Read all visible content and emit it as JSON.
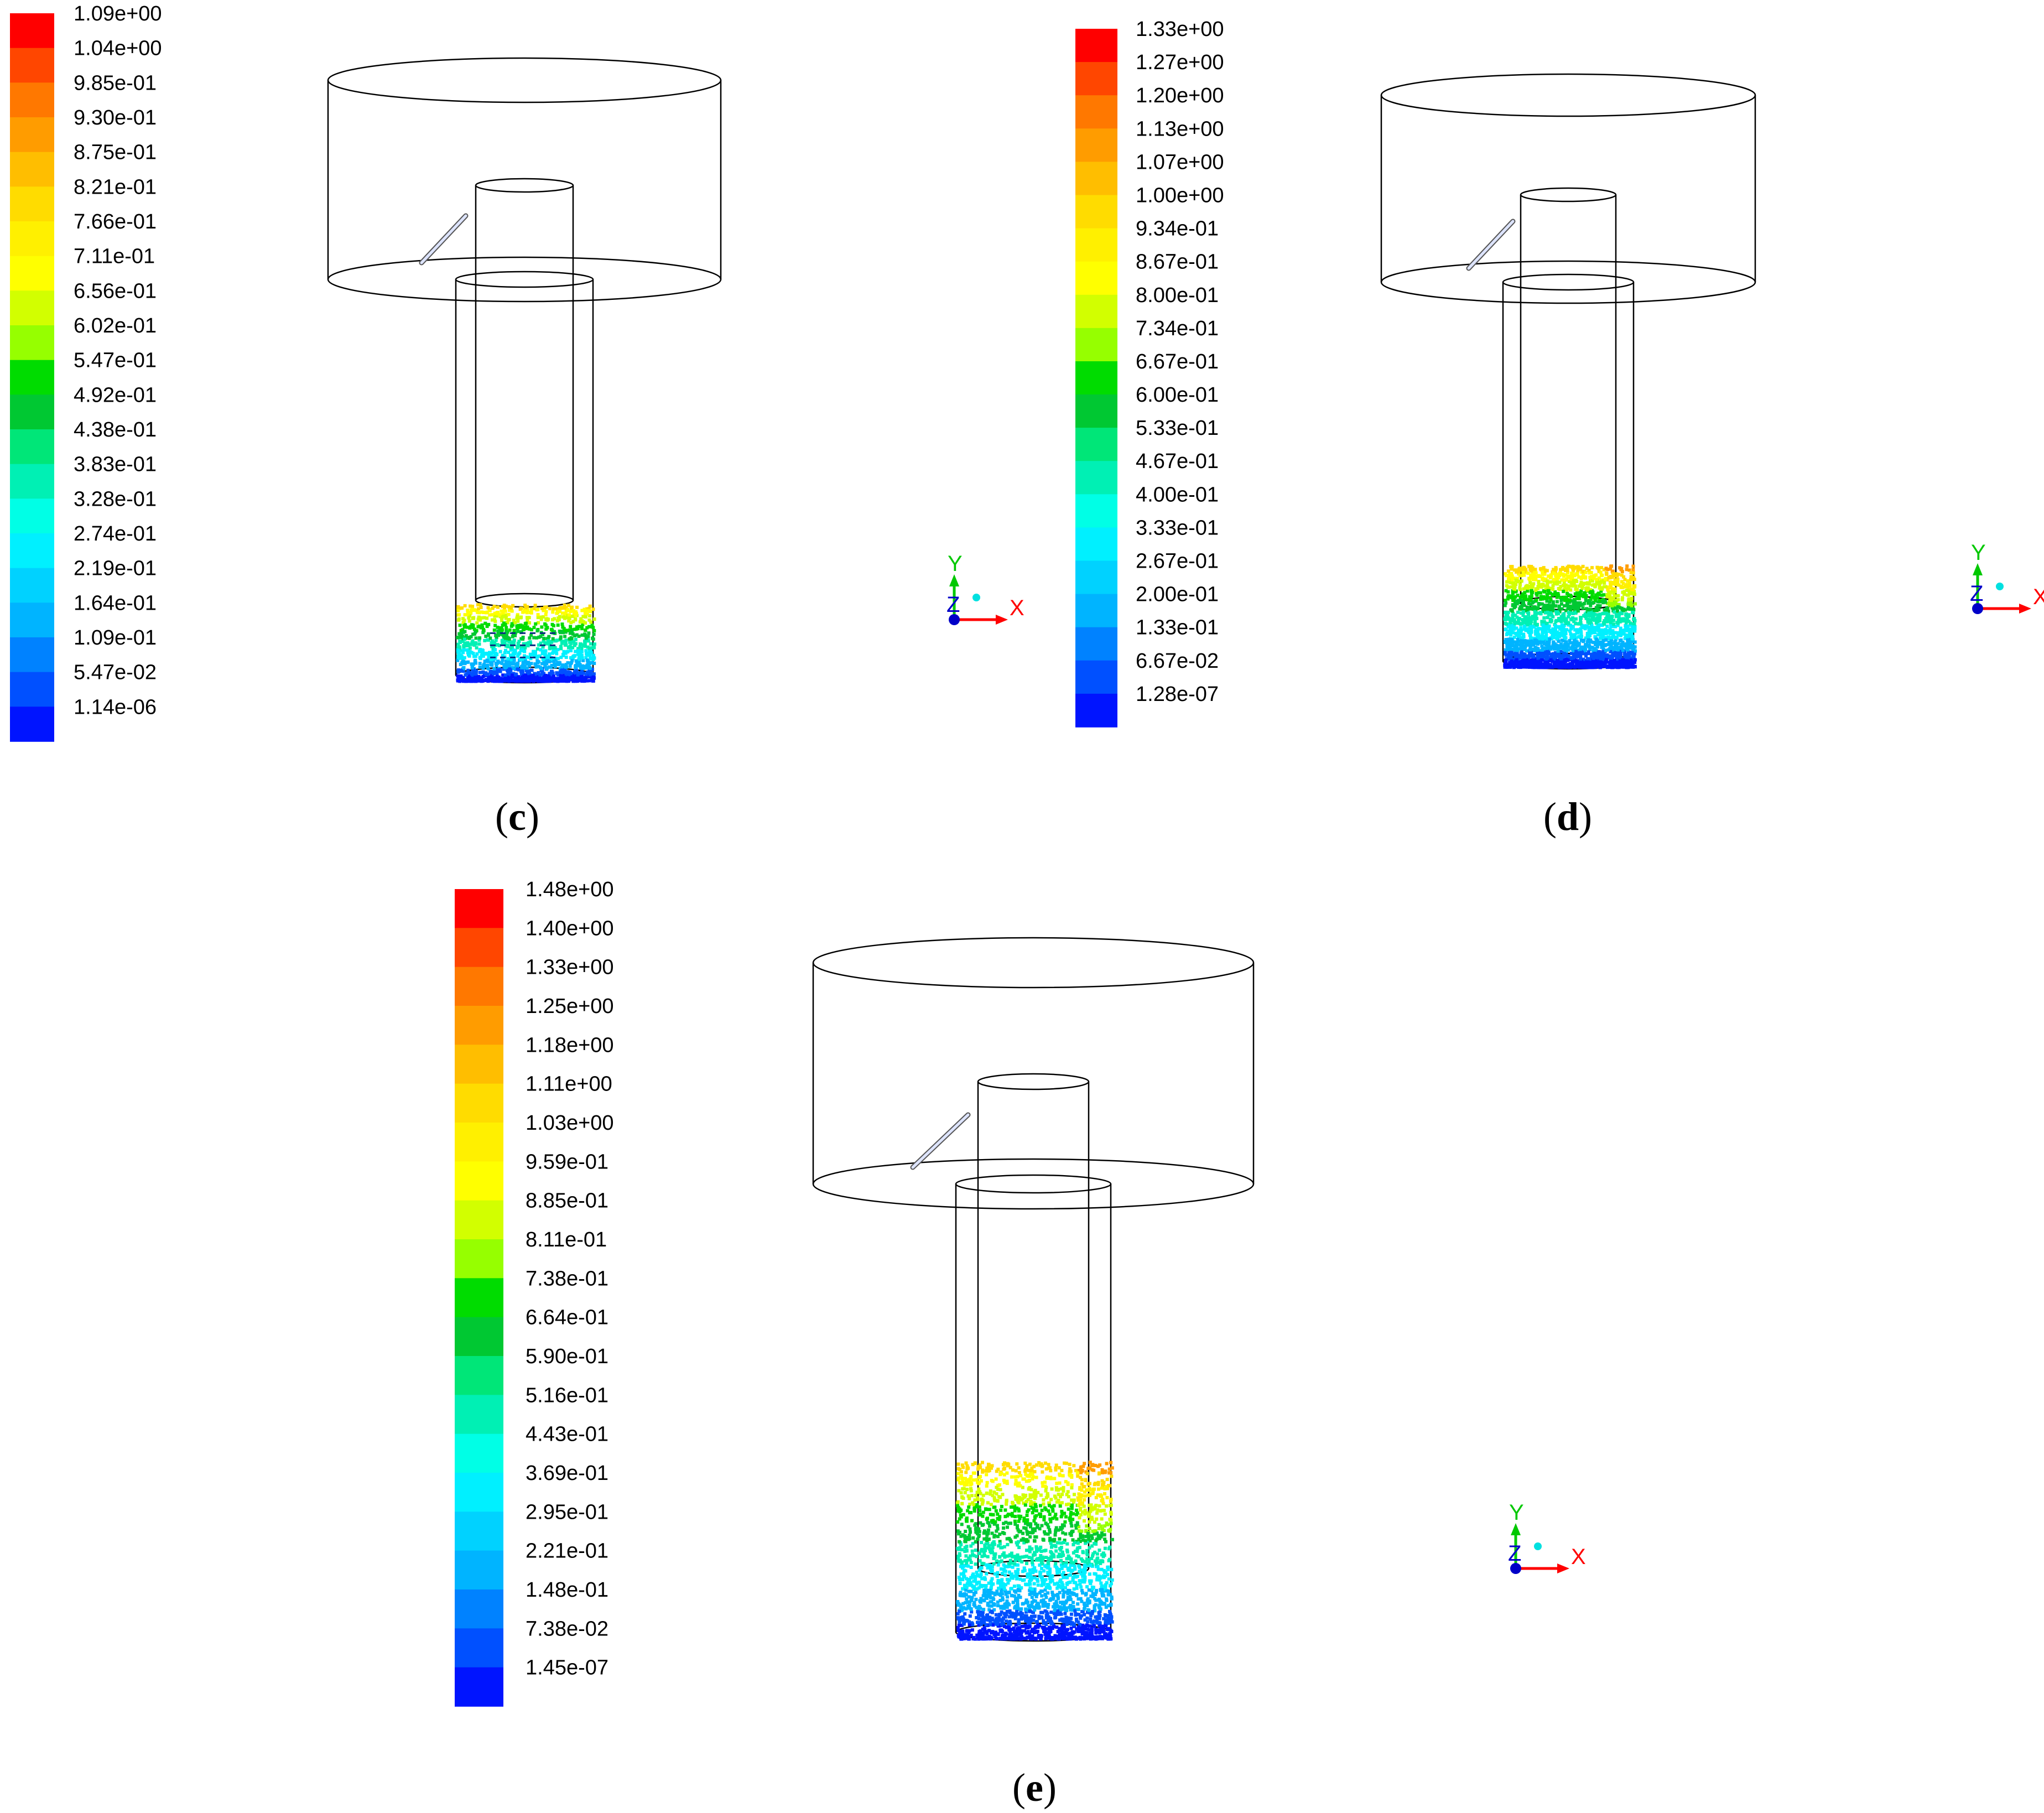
{
  "panels": [
    {
      "id": "c",
      "caption_open": "(",
      "caption_letter": "c",
      "caption_close": ")",
      "legend_values": [
        "1.09e+00",
        "1.04e+00",
        "9.85e-01",
        "9.30e-01",
        "8.75e-01",
        "8.21e-01",
        "7.66e-01",
        "7.11e-01",
        "6.56e-01",
        "6.02e-01",
        "5.47e-01",
        "4.92e-01",
        "4.38e-01",
        "3.83e-01",
        "3.28e-01",
        "2.74e-01",
        "2.19e-01",
        "1.64e-01",
        "1.09e-01",
        "5.47e-02",
        "1.14e-06"
      ]
    },
    {
      "id": "d",
      "caption_open": "(",
      "caption_letter": "d",
      "caption_close": ")",
      "legend_values": [
        "1.33e+00",
        "1.27e+00",
        "1.20e+00",
        "1.13e+00",
        "1.07e+00",
        "1.00e+00",
        "9.34e-01",
        "8.67e-01",
        "8.00e-01",
        "7.34e-01",
        "6.67e-01",
        "6.00e-01",
        "5.33e-01",
        "4.67e-01",
        "4.00e-01",
        "3.33e-01",
        "2.67e-01",
        "2.00e-01",
        "1.33e-01",
        "6.67e-02",
        "1.28e-07"
      ]
    },
    {
      "id": "e",
      "caption_open": "(",
      "caption_letter": "e",
      "caption_close": ")",
      "legend_values": [
        "1.48e+00",
        "1.40e+00",
        "1.33e+00",
        "1.25e+00",
        "1.18e+00",
        "1.11e+00",
        "1.03e+00",
        "9.59e-01",
        "8.85e-01",
        "8.11e-01",
        "7.38e-01",
        "6.64e-01",
        "5.90e-01",
        "5.16e-01",
        "4.43e-01",
        "3.69e-01",
        "2.95e-01",
        "2.21e-01",
        "1.48e-01",
        "7.38e-02",
        "1.45e-07"
      ]
    }
  ],
  "colormap": [
    "#ff0000",
    "#ff4600",
    "#ff7800",
    "#ff9c00",
    "#ffbe00",
    "#ffdc00",
    "#fff000",
    "#ffff00",
    "#d2ff00",
    "#96ff00",
    "#00dc00",
    "#00c832",
    "#00e678",
    "#00f0b4",
    "#00ffe6",
    "#00f0ff",
    "#00d2ff",
    "#00b4ff",
    "#0082ff",
    "#0050ff",
    "#0014ff"
  ],
  "axes": {
    "x": "X",
    "y": "Y",
    "z": "Z"
  }
}
